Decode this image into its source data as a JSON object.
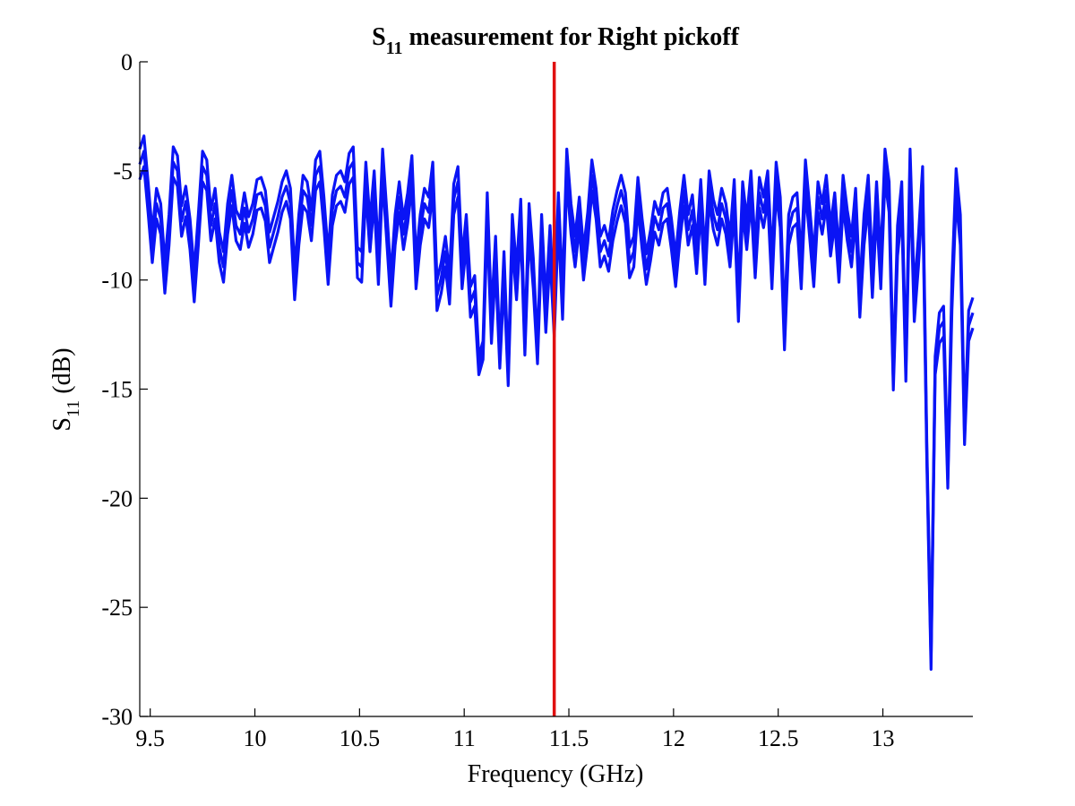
{
  "chart_data": {
    "type": "line",
    "title": {
      "main": "S",
      "sub": "11",
      "rest": " measurement for Right pickoff"
    },
    "xlabel": "Frequency (GHz)",
    "ylabel": {
      "main": "S",
      "sub": "11",
      "rest": " (dB)"
    },
    "xlim": [
      9.45,
      13.43
    ],
    "ylim": [
      -30,
      0
    ],
    "xticks": [
      9.5,
      10,
      10.5,
      11,
      11.5,
      12,
      12.5,
      13
    ],
    "xtick_labels": [
      "9.5",
      "10",
      "10.5",
      "11",
      "11.5",
      "12",
      "12.5",
      "13"
    ],
    "yticks": [
      0,
      -5,
      -10,
      -15,
      -20,
      -25,
      -30
    ],
    "ytick_labels": [
      "0",
      "-5",
      "-10",
      "-15",
      "-20",
      "-25",
      "-30"
    ],
    "grid": false,
    "marker_line": {
      "x": 11.43,
      "color": "#e01010"
    },
    "series_color": "#0a14f5",
    "base_series": [
      [
        9.45,
        -4.0
      ],
      [
        9.47,
        -3.4
      ],
      [
        9.49,
        -5.5
      ],
      [
        9.51,
        -7.8
      ],
      [
        9.53,
        -5.8
      ],
      [
        9.55,
        -6.5
      ],
      [
        9.57,
        -9.2
      ],
      [
        9.59,
        -7.0
      ],
      [
        9.61,
        -3.9
      ],
      [
        9.63,
        -4.3
      ],
      [
        9.65,
        -6.6
      ],
      [
        9.67,
        -5.7
      ],
      [
        9.69,
        -7.2
      ],
      [
        9.71,
        -9.6
      ],
      [
        9.73,
        -7.0
      ],
      [
        9.75,
        -4.1
      ],
      [
        9.77,
        -4.5
      ],
      [
        9.79,
        -6.8
      ],
      [
        9.81,
        -5.8
      ],
      [
        9.83,
        -7.8
      ],
      [
        9.85,
        -8.7
      ],
      [
        9.87,
        -6.5
      ],
      [
        9.89,
        -5.2
      ],
      [
        9.91,
        -6.8
      ],
      [
        9.93,
        -7.2
      ],
      [
        9.95,
        -6.0
      ],
      [
        9.97,
        -7.1
      ],
      [
        9.99,
        -6.5
      ],
      [
        10.01,
        -5.4
      ],
      [
        10.03,
        -5.3
      ],
      [
        10.05,
        -5.9
      ],
      [
        10.07,
        -7.8
      ],
      [
        10.09,
        -7.1
      ],
      [
        10.11,
        -6.4
      ],
      [
        10.13,
        -5.5
      ],
      [
        10.15,
        -5.0
      ],
      [
        10.17,
        -5.8
      ],
      [
        10.19,
        -9.5
      ],
      [
        10.21,
        -7.0
      ],
      [
        10.23,
        -5.2
      ],
      [
        10.25,
        -5.5
      ],
      [
        10.27,
        -6.8
      ],
      [
        10.29,
        -4.5
      ],
      [
        10.31,
        -4.1
      ],
      [
        10.33,
        -6.2
      ],
      [
        10.35,
        -8.8
      ],
      [
        10.37,
        -6.1
      ],
      [
        10.39,
        -5.2
      ],
      [
        10.41,
        -5.0
      ],
      [
        10.43,
        -5.5
      ],
      [
        10.45,
        -4.2
      ],
      [
        10.47,
        -3.9
      ],
      [
        10.49,
        -8.5
      ],
      [
        10.51,
        -8.7
      ],
      [
        10.53,
        -4.6
      ],
      [
        10.55,
        -7.3
      ],
      [
        10.57,
        -5.0
      ],
      [
        10.59,
        -8.8
      ],
      [
        10.61,
        -4.0
      ],
      [
        10.63,
        -6.8
      ],
      [
        10.65,
        -9.8
      ],
      [
        10.67,
        -7.0
      ],
      [
        10.69,
        -5.5
      ],
      [
        10.71,
        -7.2
      ],
      [
        10.73,
        -6.0
      ],
      [
        10.75,
        -4.3
      ],
      [
        10.77,
        -9.0
      ],
      [
        10.79,
        -7.0
      ],
      [
        10.81,
        -5.8
      ],
      [
        10.83,
        -6.2
      ],
      [
        10.85,
        -4.6
      ],
      [
        10.87,
        -10.0
      ],
      [
        10.89,
        -9.2
      ],
      [
        10.91,
        -8.0
      ],
      [
        10.93,
        -9.7
      ],
      [
        10.95,
        -5.6
      ],
      [
        10.97,
        -4.8
      ],
      [
        10.99,
        -9.0
      ],
      [
        11.01,
        -7.0
      ],
      [
        11.03,
        -10.3
      ],
      [
        11.05,
        -9.8
      ],
      [
        11.07,
        -13.5
      ],
      [
        11.09,
        -12.8
      ],
      [
        11.11,
        -6.0
      ],
      [
        11.13,
        -11.5
      ],
      [
        11.15,
        -8.0
      ],
      [
        11.17,
        -13.2
      ],
      [
        11.19,
        -8.7
      ],
      [
        11.21,
        -14.0
      ],
      [
        11.23,
        -7.0
      ],
      [
        11.25,
        -9.5
      ],
      [
        11.27,
        -6.3
      ],
      [
        11.29,
        -12.6
      ],
      [
        11.31,
        -6.5
      ],
      [
        11.33,
        -9.0
      ],
      [
        11.35,
        -13.0
      ],
      [
        11.37,
        -7.0
      ],
      [
        11.39,
        -11.0
      ],
      [
        11.41,
        -7.5
      ],
      [
        11.43,
        -11.2
      ],
      [
        11.45,
        -6.0
      ],
      [
        11.47,
        -10.4
      ],
      [
        11.49,
        -4.0
      ],
      [
        11.51,
        -6.5
      ],
      [
        11.53,
        -8.0
      ],
      [
        11.55,
        -6.2
      ],
      [
        11.57,
        -8.6
      ],
      [
        11.59,
        -6.9
      ],
      [
        11.61,
        -4.5
      ],
      [
        11.63,
        -5.8
      ],
      [
        11.65,
        -8.0
      ],
      [
        11.67,
        -7.5
      ],
      [
        11.69,
        -8.2
      ],
      [
        11.71,
        -6.8
      ],
      [
        11.73,
        -5.9
      ],
      [
        11.75,
        -5.2
      ],
      [
        11.77,
        -6.0
      ],
      [
        11.79,
        -8.5
      ],
      [
        11.81,
        -8.0
      ],
      [
        11.83,
        -5.3
      ],
      [
        11.85,
        -7.2
      ],
      [
        11.87,
        -8.8
      ],
      [
        11.89,
        -7.7
      ],
      [
        11.91,
        -6.4
      ],
      [
        11.93,
        -7.0
      ],
      [
        11.95,
        -6.0
      ],
      [
        11.97,
        -5.8
      ],
      [
        11.99,
        -7.2
      ],
      [
        12.01,
        -8.9
      ],
      [
        12.03,
        -6.8
      ],
      [
        12.05,
        -5.2
      ],
      [
        12.07,
        -7.0
      ],
      [
        12.09,
        -6.1
      ],
      [
        12.11,
        -8.3
      ],
      [
        12.13,
        -5.4
      ],
      [
        12.15,
        -8.8
      ],
      [
        12.17,
        -5.0
      ],
      [
        12.19,
        -6.3
      ],
      [
        12.21,
        -7.0
      ],
      [
        12.23,
        -5.8
      ],
      [
        12.25,
        -6.5
      ],
      [
        12.27,
        -8.0
      ],
      [
        12.29,
        -5.4
      ],
      [
        12.31,
        -10.5
      ],
      [
        12.33,
        -5.5
      ],
      [
        12.35,
        -7.2
      ],
      [
        12.37,
        -5.0
      ],
      [
        12.39,
        -8.5
      ],
      [
        12.41,
        -5.3
      ],
      [
        12.43,
        -6.2
      ],
      [
        12.45,
        -5.0
      ],
      [
        12.47,
        -9.0
      ],
      [
        12.49,
        -4.6
      ],
      [
        12.51,
        -6.2
      ],
      [
        12.53,
        -11.8
      ],
      [
        12.55,
        -7.0
      ],
      [
        12.57,
        -6.2
      ],
      [
        12.59,
        -6.0
      ],
      [
        12.61,
        -9.0
      ],
      [
        12.63,
        -4.5
      ],
      [
        12.65,
        -6.6
      ],
      [
        12.67,
        -8.9
      ],
      [
        12.69,
        -5.5
      ],
      [
        12.71,
        -6.5
      ],
      [
        12.73,
        -5.2
      ],
      [
        12.75,
        -7.5
      ],
      [
        12.77,
        -6.0
      ],
      [
        12.79,
        -8.7
      ],
      [
        12.81,
        -5.2
      ],
      [
        12.83,
        -6.8
      ],
      [
        12.85,
        -8.0
      ],
      [
        12.87,
        -5.8
      ],
      [
        12.89,
        -10.3
      ],
      [
        12.91,
        -7.0
      ],
      [
        12.93,
        -5.2
      ],
      [
        12.95,
        -9.4
      ],
      [
        12.97,
        -5.5
      ],
      [
        12.99,
        -9.0
      ],
      [
        13.01,
        -4.0
      ],
      [
        13.03,
        -5.5
      ],
      [
        13.05,
        -14.2
      ],
      [
        13.07,
        -7.5
      ],
      [
        13.09,
        -5.5
      ],
      [
        13.11,
        -13.8
      ],
      [
        13.13,
        -4.0
      ],
      [
        13.15,
        -10.5
      ],
      [
        13.17,
        -8.0
      ],
      [
        13.19,
        -4.8
      ],
      [
        13.21,
        -17.5
      ],
      [
        13.23,
        -27.0
      ],
      [
        13.25,
        -13.5
      ],
      [
        13.27,
        -11.5
      ],
      [
        13.29,
        -11.2
      ],
      [
        13.31,
        -18.7
      ],
      [
        13.33,
        -10.0
      ],
      [
        13.35,
        -4.9
      ],
      [
        13.37,
        -7.0
      ],
      [
        13.39,
        -16.7
      ],
      [
        13.41,
        -11.4
      ],
      [
        13.43,
        -10.8
      ]
    ],
    "series": [
      {
        "offset_db": 0.0
      },
      {
        "offset_db": -0.7
      },
      {
        "offset_db": -1.4
      }
    ]
  }
}
